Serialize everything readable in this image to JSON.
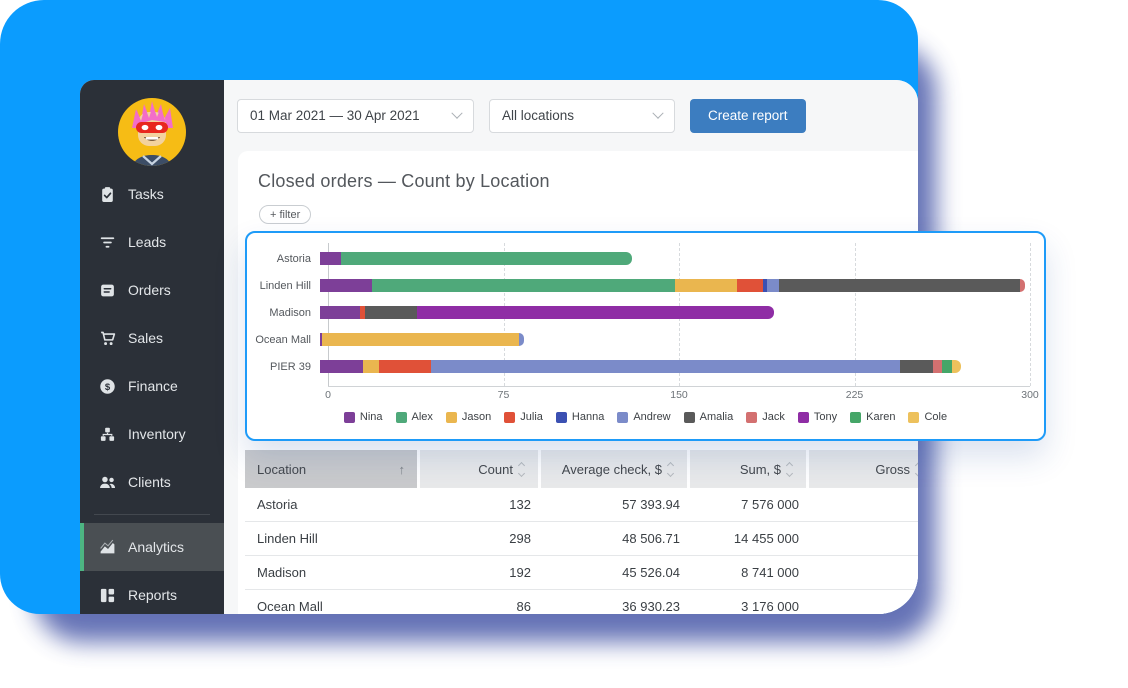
{
  "colors": {
    "background_blue": "#0b9cfe",
    "backdrop_shadow": "#4a5aa9",
    "sidebar_bg": "#2b3038",
    "sidebar_active_bg": "#4a4f53",
    "sidebar_active_indicator": "#4db582",
    "primary_button": "#3c7dc0",
    "chart_card_border": "#1e9bf8"
  },
  "topbar": {
    "date_range": "01 Mar 2021 — 30 Apr 2021",
    "location_filter": "All locations",
    "create_report_label": "Create report"
  },
  "sidebar": {
    "items": [
      {
        "label": "Tasks",
        "icon": "tasks-icon"
      },
      {
        "label": "Leads",
        "icon": "leads-icon"
      },
      {
        "label": "Orders",
        "icon": "orders-icon"
      },
      {
        "label": "Sales",
        "icon": "sales-icon"
      },
      {
        "label": "Finance",
        "icon": "finance-icon"
      },
      {
        "label": "Inventory",
        "icon": "inventory-icon"
      },
      {
        "label": "Clients",
        "icon": "clients-icon"
      },
      {
        "label": "Analytics",
        "icon": "analytics-icon",
        "active": true,
        "divider_before": true
      },
      {
        "label": "Reports",
        "icon": "reports-icon"
      }
    ]
  },
  "main": {
    "title": "Closed orders — Count by Location",
    "filter_label": "+ filter"
  },
  "chart_data": {
    "type": "bar",
    "orientation": "horizontal",
    "stacked": true,
    "title": "Closed orders — Count by Location",
    "categories": [
      "Astoria",
      "Linden Hill",
      "Madison",
      "Ocean Mall",
      "PIER 39"
    ],
    "series": [
      {
        "name": "Nina",
        "color": "#7d3f98",
        "values": [
          9,
          22,
          17,
          1,
          18
        ]
      },
      {
        "name": "Alex",
        "color": "#4fa97a",
        "values": [
          123,
          128,
          0,
          0,
          0
        ]
      },
      {
        "name": "Jason",
        "color": "#eab64f",
        "values": [
          0,
          26,
          0,
          83,
          7
        ]
      },
      {
        "name": "Julia",
        "color": "#e05138",
        "values": [
          0,
          11,
          2,
          0,
          22
        ]
      },
      {
        "name": "Hanna",
        "color": "#3b50b2",
        "values": [
          0,
          2,
          0,
          0,
          0
        ]
      },
      {
        "name": "Andrew",
        "color": "#7b8bc9",
        "values": [
          0,
          5,
          0,
          2,
          198
        ]
      },
      {
        "name": "Amalia",
        "color": "#5a5a5a",
        "values": [
          0,
          102,
          22,
          0,
          14
        ]
      },
      {
        "name": "Jack",
        "color": "#d37070",
        "values": [
          0,
          2,
          0,
          0,
          4
        ]
      },
      {
        "name": "Tony",
        "color": "#8f2da5",
        "values": [
          0,
          0,
          151,
          0,
          0
        ]
      },
      {
        "name": "Karen",
        "color": "#45a668",
        "values": [
          0,
          0,
          0,
          0,
          4
        ]
      },
      {
        "name": "Cole",
        "color": "#edc15c",
        "values": [
          0,
          0,
          0,
          0,
          4
        ]
      }
    ],
    "totals": [
      132,
      298,
      192,
      86,
      271
    ],
    "xlim": [
      0,
      300
    ],
    "xticks": [
      0,
      75,
      150,
      225,
      300
    ],
    "grid": "dashed-vertical",
    "legend_position": "bottom"
  },
  "table": {
    "columns": [
      {
        "label": "Location",
        "align": "left",
        "sort": "asc"
      },
      {
        "label": "Count",
        "align": "right",
        "sort": "none"
      },
      {
        "label": "Average check, $",
        "align": "right",
        "sort": "none"
      },
      {
        "label": "Sum, $",
        "align": "right",
        "sort": "none"
      },
      {
        "label": "Gross",
        "align": "right",
        "sort": "none"
      }
    ],
    "rows": [
      [
        "Astoria",
        "132",
        "57 393.94",
        "7 576 000",
        ""
      ],
      [
        "Linden Hill",
        "298",
        "48 506.71",
        "14 455 000",
        ""
      ],
      [
        "Madison",
        "192",
        "45 526.04",
        "8 741 000",
        ""
      ],
      [
        "Ocean Mall",
        "86",
        "36 930.23",
        "3 176 000",
        ""
      ]
    ]
  }
}
